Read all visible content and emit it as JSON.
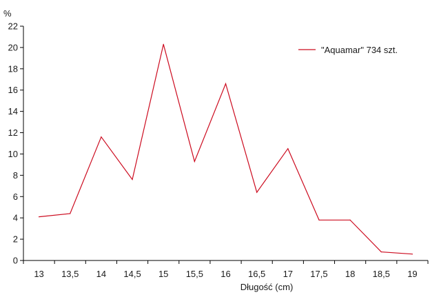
{
  "chart_data": {
    "type": "line",
    "ylabel": "%",
    "xlabel": "Długość (cm)",
    "ylim": [
      0,
      22
    ],
    "yticks": [
      "0",
      "2",
      "4",
      "6",
      "8",
      "10",
      "12",
      "14",
      "16",
      "18",
      "20",
      "22"
    ],
    "categories": [
      "13",
      "13,5",
      "14",
      "14,5",
      "15",
      "15,5",
      "16",
      "16,5",
      "17",
      "17,5",
      "18",
      "18,5",
      "19"
    ],
    "series": [
      {
        "name": "\"Aquamar\" 734 szt.",
        "color": "#cc0a1e",
        "values": [
          4.1,
          4.4,
          11.6,
          7.6,
          20.3,
          9.3,
          16.6,
          6.4,
          10.5,
          3.8,
          3.8,
          0.8,
          0.6
        ]
      }
    ],
    "legend_position": "top-right",
    "grid": false
  }
}
